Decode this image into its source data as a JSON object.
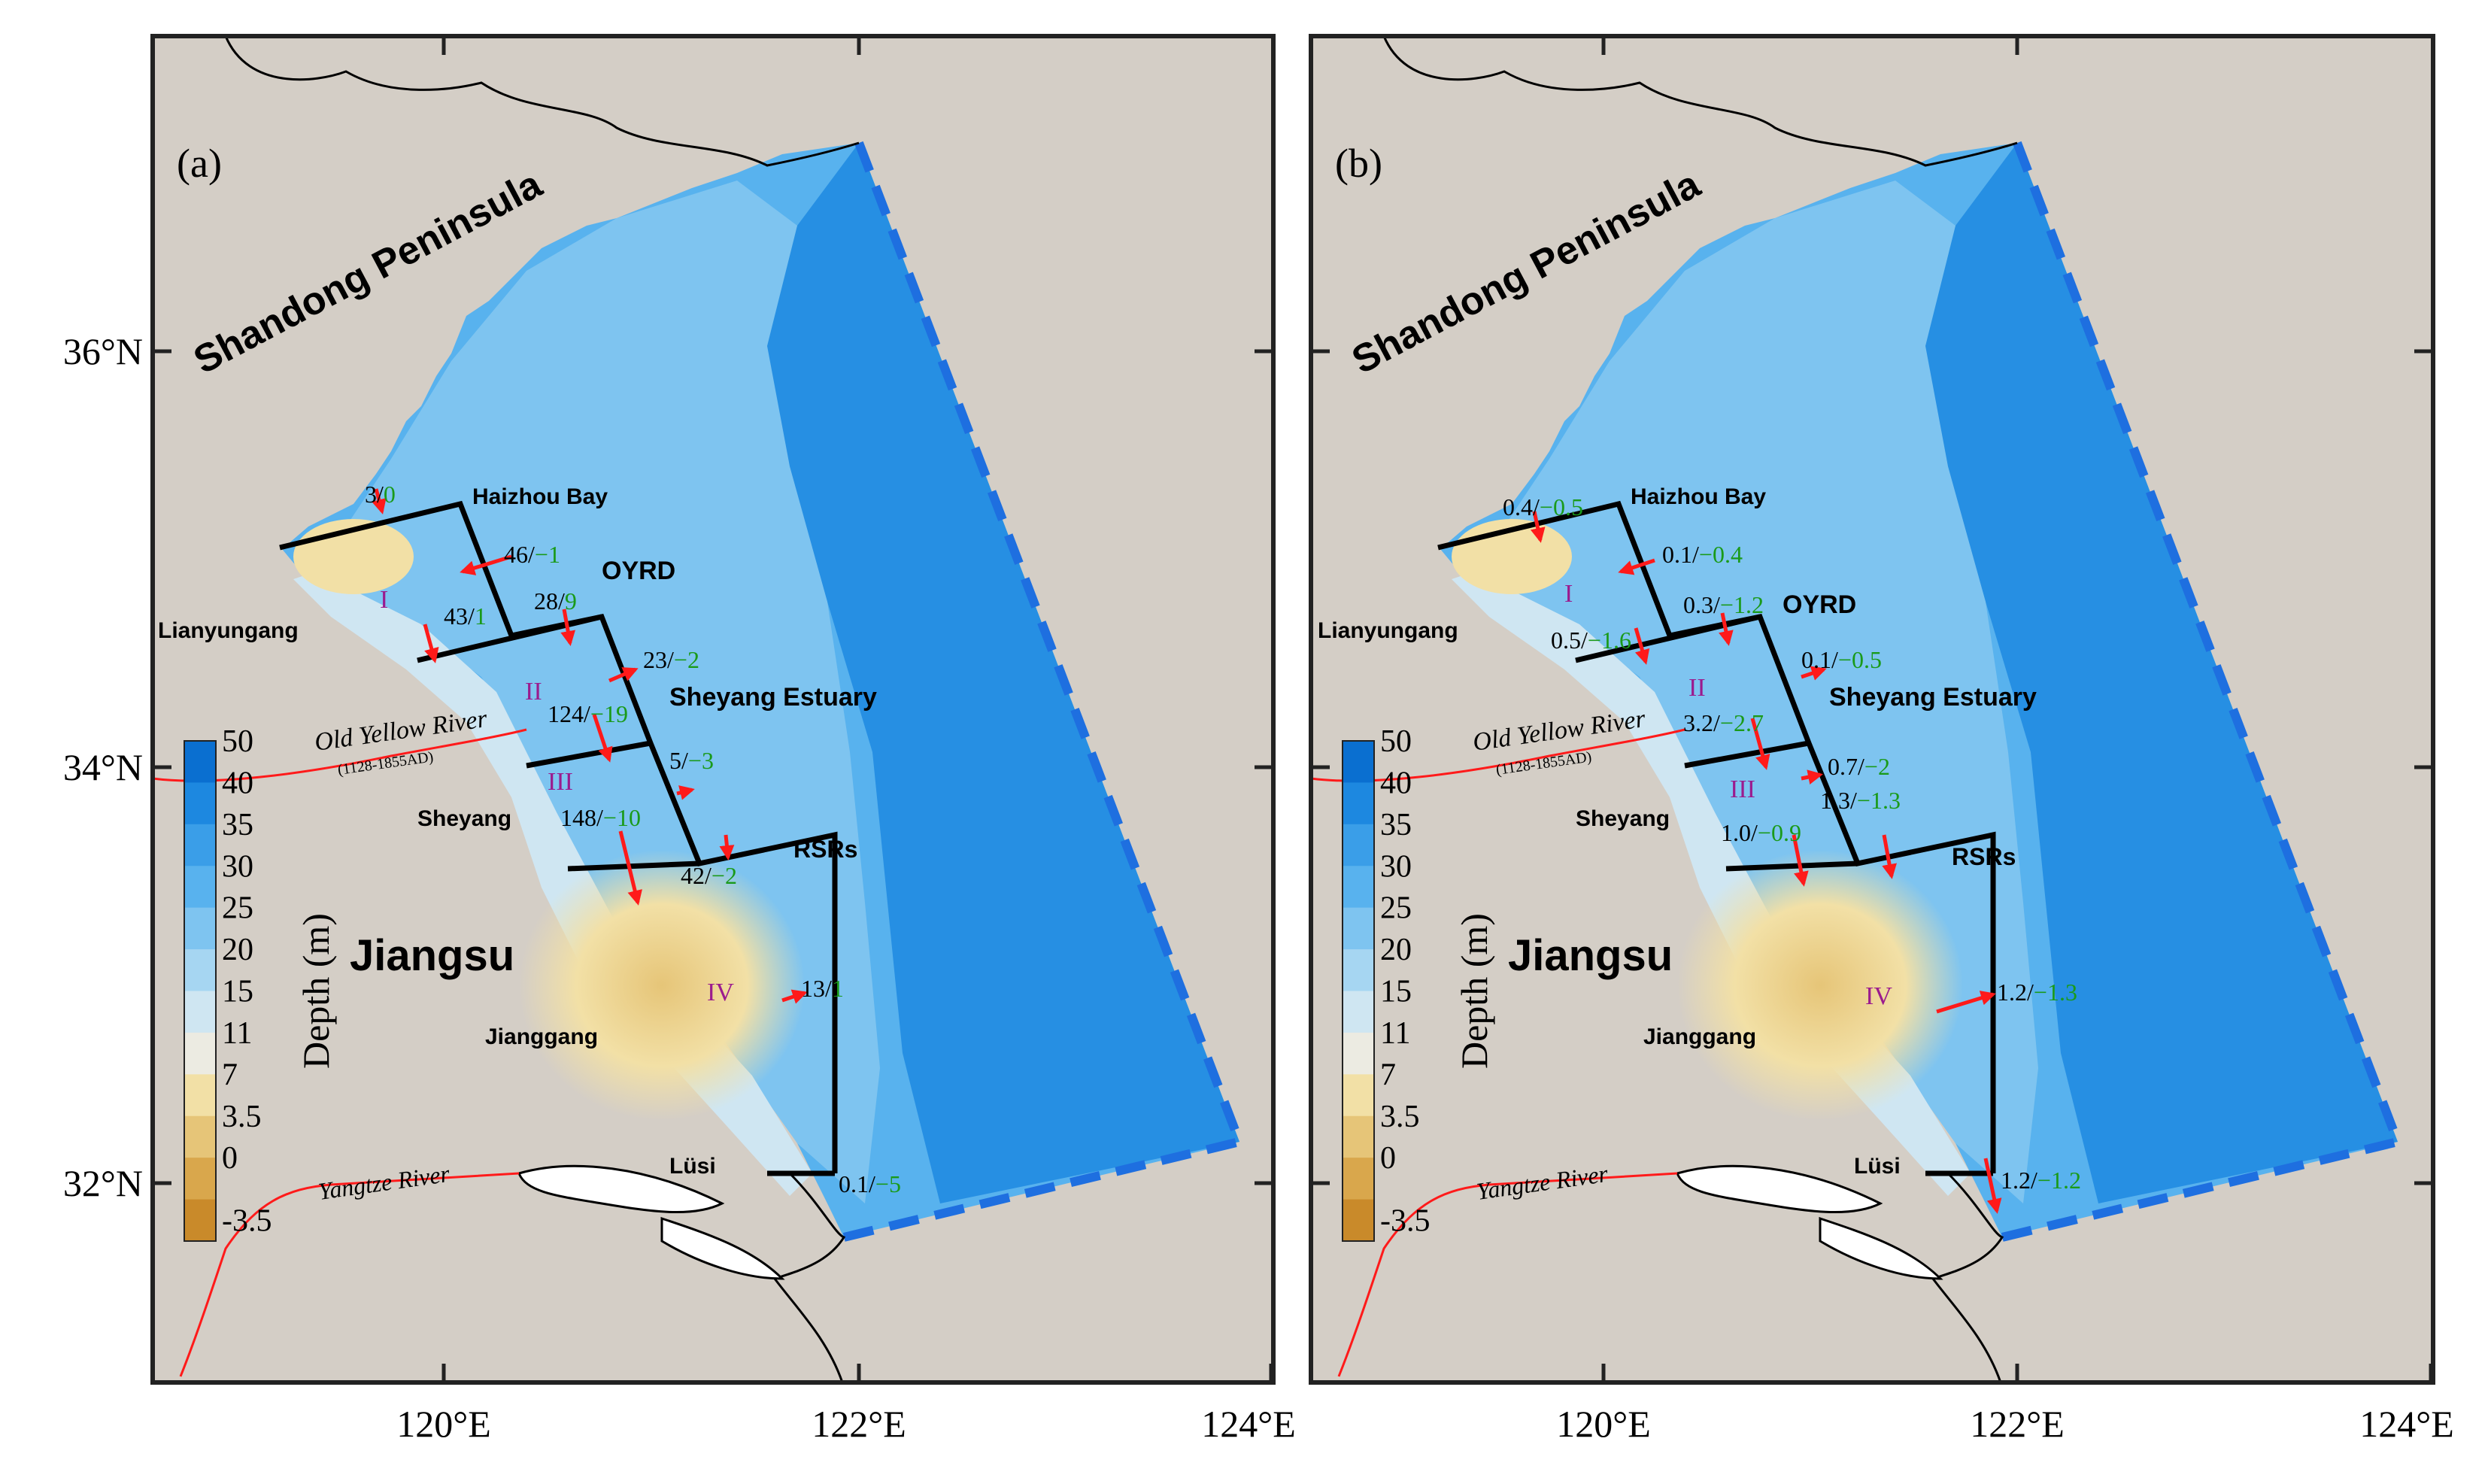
{
  "panels": [
    {
      "id": "a",
      "label": "(a)",
      "fluxes": [
        {
          "black": "3/",
          "green": "0"
        },
        {
          "black": "46/",
          "green": "−1"
        },
        {
          "black": "43/",
          "green": "1"
        },
        {
          "black": "28/",
          "green": "9"
        },
        {
          "black": "23/",
          "green": "−2"
        },
        {
          "black": "124/",
          "green": "−19"
        },
        {
          "black": "5/",
          "green": "−3"
        },
        {
          "black": "148/",
          "green": "−10"
        },
        {
          "black": "42/",
          "green": "−2"
        },
        {
          "black": "13/",
          "green": "1"
        },
        {
          "black": "0.1/",
          "green": "−5"
        }
      ]
    },
    {
      "id": "b",
      "label": "(b)",
      "fluxes": [
        {
          "black": "0.4/",
          "green": "−0.5"
        },
        {
          "black": "0.1/",
          "green": "−0.4"
        },
        {
          "black": "0.5/",
          "green": "−1.6"
        },
        {
          "black": "0.3/",
          "green": "−1.2"
        },
        {
          "black": "0.1/",
          "green": "−0.5"
        },
        {
          "black": "3.2/",
          "green": "−2.7"
        },
        {
          "black": "0.7/",
          "green": "−2"
        },
        {
          "black": "1.3/",
          "green": "−1.3"
        },
        {
          "black": "1.0/",
          "green": "−0.9"
        },
        {
          "black": "1.2/",
          "green": "−1.3"
        },
        {
          "black": "1.2/",
          "green": "−1.2"
        }
      ]
    }
  ],
  "places": {
    "shandong": "Shandong Peninsula",
    "haizhou": "Haizhou Bay",
    "oyrd": "OYRD",
    "lianyungang": "Lianyungang",
    "sheyang_estuary": "Sheyang Estuary",
    "old_yellow_river": "Old Yellow River",
    "old_yellow_river_years": "(1128-1855AD)",
    "sheyang": "Sheyang",
    "rsrs": "RSRs",
    "jiangsu": "Jiangsu",
    "jianggang": "Jianggang",
    "lusi": "Lüsi",
    "yangtze": "Yangtze River"
  },
  "zones": [
    "I",
    "II",
    "III",
    "IV"
  ],
  "axes": {
    "lat_ticks": [
      "36°N",
      "34°N",
      "32°N"
    ],
    "lon_ticks": [
      "120°E",
      "122°E",
      "124°E"
    ]
  },
  "colorbar": {
    "title": "Depth (m)",
    "levels": [
      "50",
      "40",
      "35",
      "30",
      "25",
      "20",
      "15",
      "11",
      "7",
      "3.5",
      "0",
      "-3.5"
    ],
    "colors": [
      "#0a6fd0",
      "#1d88e0",
      "#3a9ee8",
      "#58b2ee",
      "#7ec4f0",
      "#a6d6f2",
      "#cfe6f2",
      "#ecebe2",
      "#f2e0a6",
      "#e6c578",
      "#d9a74c",
      "#c98a2a"
    ]
  },
  "colors": {
    "land": "#d4cec6",
    "frame": "#222222",
    "arrow": "#ff1a1a",
    "river": "#ff1a1a",
    "open_boundary": "#1e6fe0",
    "flux_positive_label": "#1a9a1a",
    "zone_label": "#9b1b8e"
  }
}
